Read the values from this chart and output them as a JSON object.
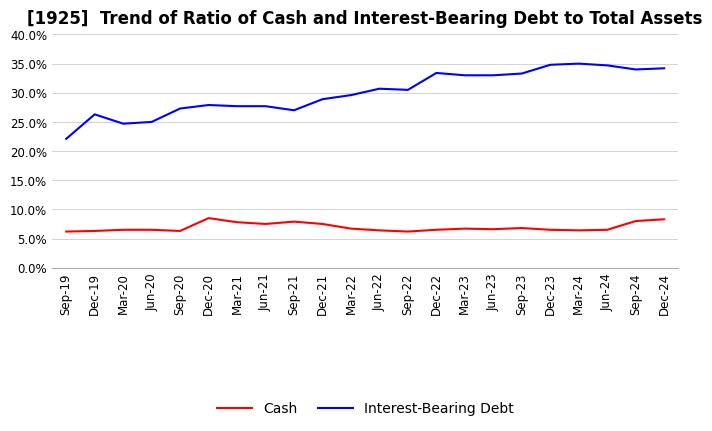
{
  "title": "[1925]  Trend of Ratio of Cash and Interest-Bearing Debt to Total Assets",
  "ylim": [
    0.0,
    0.4
  ],
  "yticks": [
    0.0,
    0.05,
    0.1,
    0.15,
    0.2,
    0.25,
    0.3,
    0.35,
    0.4
  ],
  "x_labels": [
    "Sep-19",
    "Dec-19",
    "Mar-20",
    "Jun-20",
    "Sep-20",
    "Dec-20",
    "Mar-21",
    "Jun-21",
    "Sep-21",
    "Dec-21",
    "Mar-22",
    "Jun-22",
    "Sep-22",
    "Dec-22",
    "Mar-23",
    "Jun-23",
    "Sep-23",
    "Dec-23",
    "Mar-24",
    "Jun-24",
    "Sep-24",
    "Dec-24"
  ],
  "cash": [
    0.062,
    0.063,
    0.065,
    0.065,
    0.063,
    0.085,
    0.078,
    0.075,
    0.079,
    0.075,
    0.067,
    0.064,
    0.062,
    0.065,
    0.067,
    0.066,
    0.068,
    0.065,
    0.064,
    0.065,
    0.08,
    0.083
  ],
  "interest_bearing_debt": [
    0.221,
    0.263,
    0.247,
    0.25,
    0.273,
    0.279,
    0.277,
    0.277,
    0.27,
    0.289,
    0.296,
    0.307,
    0.305,
    0.334,
    0.33,
    0.33,
    0.333,
    0.348,
    0.35,
    0.347,
    0.34,
    0.342
  ],
  "cash_color": "#ff0000",
  "ibd_color": "#0000ff",
  "background_color": "#ffffff",
  "title_fontsize": 12,
  "tick_fontsize": 8.5,
  "legend_fontsize": 10,
  "line_width": 1.5
}
